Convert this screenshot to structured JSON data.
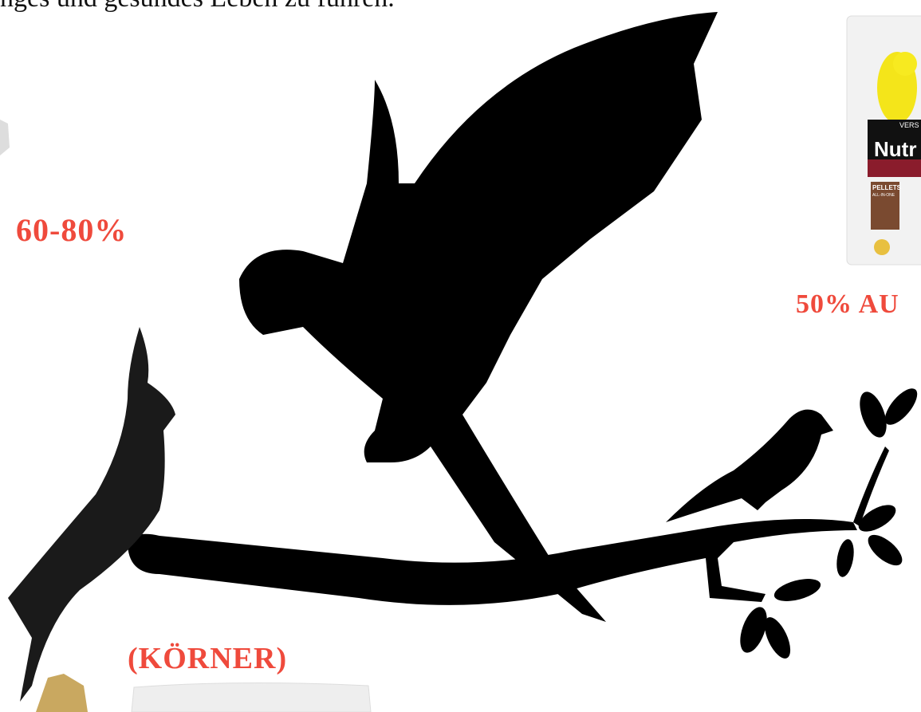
{
  "header": {
    "text": "nges und gesundes Leben zu führen."
  },
  "labels": {
    "left_percent": "60-80%",
    "right_percent": "50% AU",
    "seeds": "(KÖRNER)"
  },
  "product": {
    "brand": "VERS",
    "name": "Nutr",
    "type": "PELLETS",
    "subtype": "ALL-IN-ONE"
  }
}
